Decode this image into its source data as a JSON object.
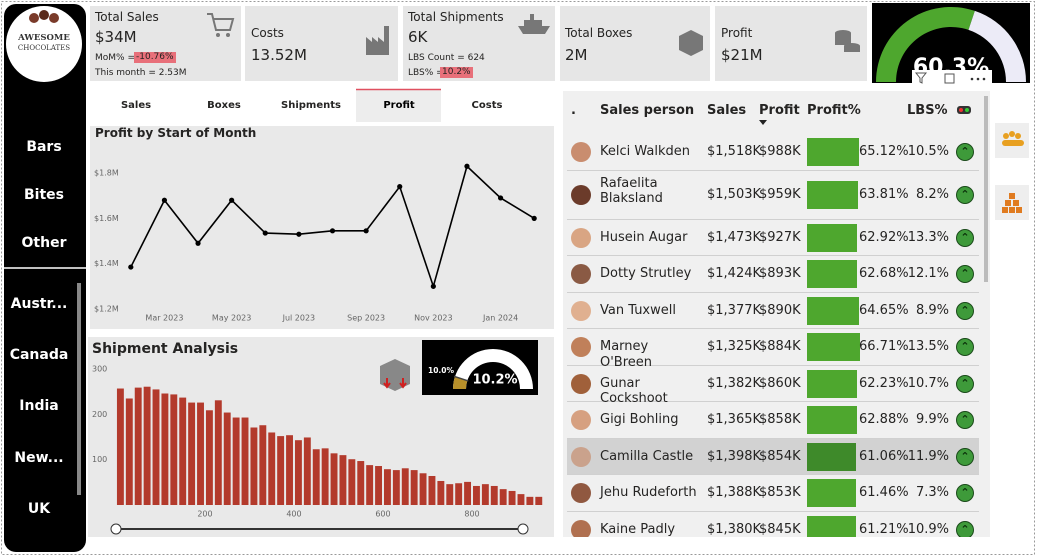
{
  "sidebar": {
    "logo": {
      "line1": "AWESOME",
      "line2": "CHOCOLATES"
    },
    "categories": [
      "Bars",
      "Bites",
      "Other"
    ],
    "countries": [
      "Austr...",
      "Canada",
      "India",
      "New...",
      "UK"
    ]
  },
  "kpis": {
    "sales": {
      "title": "Total Sales",
      "value": "$34M",
      "mom_label": "MoM% =",
      "mom_value": "-10.76%",
      "month_label": "This month = 2.53M"
    },
    "costs": {
      "title": "Costs",
      "value": "13.52M"
    },
    "shipments": {
      "title": "Total Shipments",
      "value": "6K",
      "lbs_count": "LBS Count = 624",
      "lbs_label": "LBS% =",
      "lbs_value": "10.2%"
    },
    "boxes": {
      "title": "Total Boxes",
      "value": "2M"
    },
    "profit": {
      "title": "Profit",
      "value": "$21M"
    }
  },
  "gauge": {
    "value": 60.3,
    "label": "60.3%"
  },
  "tabs": {
    "items": [
      "Sales",
      "Boxes",
      "Shipments",
      "Profit",
      "Costs"
    ],
    "active": 3
  },
  "chart_data": [
    {
      "type": "line",
      "title": "Profit by Start of Month",
      "color": "#000000",
      "categories": [
        null,
        "Mar 2023",
        null,
        "May 2023",
        null,
        "Jul 2023",
        null,
        "Sep 2023",
        null,
        "Nov 2023",
        null,
        "Jan 2024",
        null
      ],
      "values": [
        1385000,
        1680000,
        1490000,
        1680000,
        1535000,
        1530000,
        1545000,
        1545000,
        1740000,
        1300000,
        1830000,
        1690000,
        1600000
      ],
      "ylim": [
        1200000,
        1850000
      ],
      "yticks": [
        {
          "value": 1200000,
          "label": "$1.2M"
        },
        {
          "value": 1400000,
          "label": "$1.4M"
        },
        {
          "value": 1600000,
          "label": "$1.6M"
        },
        {
          "value": 1800000,
          "label": "$1.8M"
        }
      ],
      "grid": false
    },
    {
      "type": "histogram",
      "title": "Shipment Analysis",
      "color": "#b33a2c",
      "bins": [
        0,
        20,
        40,
        60,
        80,
        100,
        120,
        140,
        160,
        180,
        200,
        220,
        240,
        260,
        280,
        300,
        320,
        340,
        360,
        380,
        400,
        420,
        440,
        460,
        480,
        500,
        520,
        540,
        560,
        580,
        600,
        620,
        640,
        660,
        680,
        700,
        720,
        740,
        760,
        780,
        800,
        820,
        840,
        860,
        880,
        900,
        920,
        940,
        960
      ],
      "counts": [
        257,
        235,
        259,
        261,
        255,
        246,
        244,
        237,
        226,
        226,
        209,
        231,
        204,
        193,
        193,
        171,
        176,
        160,
        152,
        154,
        143,
        149,
        123,
        125,
        114,
        110,
        101,
        97,
        88,
        86,
        79,
        77,
        81,
        77,
        70,
        64,
        53,
        46,
        48,
        51,
        42,
        46,
        42,
        35,
        31,
        24,
        18,
        18
      ],
      "xlim": [
        -10,
        975
      ],
      "xticks": [
        200,
        400,
        600,
        800
      ],
      "ylim": [
        0,
        310
      ],
      "yticks": [
        100,
        200,
        300
      ],
      "grid": false
    }
  ],
  "shipment_gauge": {
    "target": {
      "value": 10,
      "label": "10.0%"
    },
    "value": 10.2,
    "label": "10.2%"
  },
  "table": {
    "headers": [
      ".",
      "Sales person",
      "Sales",
      "Profit",
      "Profit%",
      "LBS%"
    ],
    "selected": 8,
    "rows": [
      [
        "Kelci Walkden",
        "$1,518K",
        "$988K",
        "65.12%",
        "10.5%"
      ],
      [
        "Rafaelita Blaksland",
        "$1,503K",
        "$959K",
        "63.81%",
        "8.2%"
      ],
      [
        "Husein Augar",
        "$1,473K",
        "$927K",
        "62.92%",
        "13.3%"
      ],
      [
        "Dotty Strutley",
        "$1,424K",
        "$893K",
        "62.68%",
        "12.1%"
      ],
      [
        "Van Tuxwell",
        "$1,377K",
        "$890K",
        "64.65%",
        "8.9%"
      ],
      [
        "Marney O'Breen",
        "$1,325K",
        "$884K",
        "66.71%",
        "13.5%"
      ],
      [
        "Gunar Cockshoot",
        "$1,382K",
        "$860K",
        "62.23%",
        "10.7%"
      ],
      [
        "Gigi Bohling",
        "$1,365K",
        "$858K",
        "62.88%",
        "9.9%"
      ],
      [
        "Camilla Castle",
        "$1,398K",
        "$854K",
        "61.06%",
        "11.9%"
      ],
      [
        "Jehu Rudeforth",
        "$1,388K",
        "$853K",
        "61.46%",
        "7.3%"
      ],
      [
        "Kaine Padly",
        "$1,380K",
        "$845K",
        "61.21%",
        "10.9%"
      ]
    ]
  }
}
